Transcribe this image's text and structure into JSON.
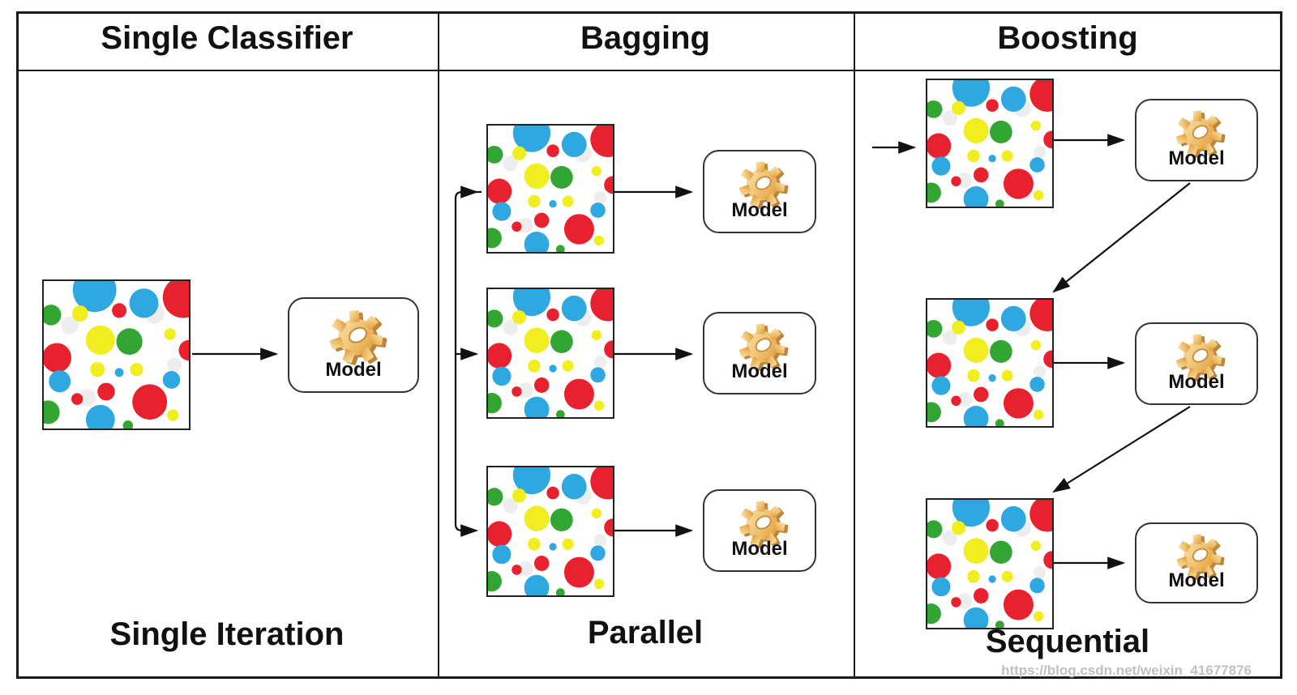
{
  "diagram": {
    "title_row": {
      "columns": [
        {
          "header": "Single Classifier",
          "caption": "Single Iteration"
        },
        {
          "header": "Bagging",
          "caption": "Parallel"
        },
        {
          "header": "Boosting",
          "caption": "Sequential"
        }
      ]
    },
    "model_label": "Model",
    "icons": [
      "gear-icon",
      "dataset-sample-image",
      "arrow-connector"
    ],
    "colors": {
      "line": "#1a1a1a",
      "gear_gold": "#EFBE6A",
      "gear_gold_dark": "#BE8638",
      "dot_blue": "#2FA8E1",
      "dot_red": "#E8212E",
      "dot_green": "#33A532",
      "dot_yellow": "#F0EE1F",
      "dot_ghost": "#ededed"
    },
    "sample_image": {
      "name": "colored-dots-dataset",
      "dots": [
        [
          18,
          30,
          6,
          "ghost"
        ],
        [
          76,
          22,
          7,
          "ghost"
        ],
        [
          30,
          79,
          6,
          "ghost"
        ],
        [
          90,
          57,
          5,
          "ghost"
        ],
        [
          35,
          6,
          15,
          "blue"
        ],
        [
          69,
          15,
          10,
          "blue"
        ],
        [
          96,
          11,
          14,
          "red"
        ],
        [
          52,
          20,
          5,
          "red"
        ],
        [
          5,
          23,
          7,
          "green"
        ],
        [
          25,
          22,
          5.5,
          "yellow"
        ],
        [
          39,
          40,
          10,
          "yellow"
        ],
        [
          59,
          41,
          9,
          "green"
        ],
        [
          87,
          36,
          4,
          "yellow"
        ],
        [
          9,
          52,
          10,
          "red"
        ],
        [
          100,
          47,
          7,
          "red"
        ],
        [
          37,
          60,
          5,
          "yellow"
        ],
        [
          52,
          62,
          3,
          "blue"
        ],
        [
          64,
          60,
          4.5,
          "yellow"
        ],
        [
          11,
          68,
          7.5,
          "blue"
        ],
        [
          88,
          67,
          6,
          "blue"
        ],
        [
          43,
          75,
          6,
          "red"
        ],
        [
          23,
          80,
          4,
          "red"
        ],
        [
          73,
          82,
          12,
          "red"
        ],
        [
          39,
          94,
          10,
          "blue"
        ],
        [
          3,
          89,
          8,
          "green"
        ],
        [
          89,
          91,
          4,
          "yellow"
        ],
        [
          58,
          98,
          3.5,
          "green"
        ]
      ]
    }
  },
  "watermark": "https://blog.csdn.net/weixin_41677876"
}
